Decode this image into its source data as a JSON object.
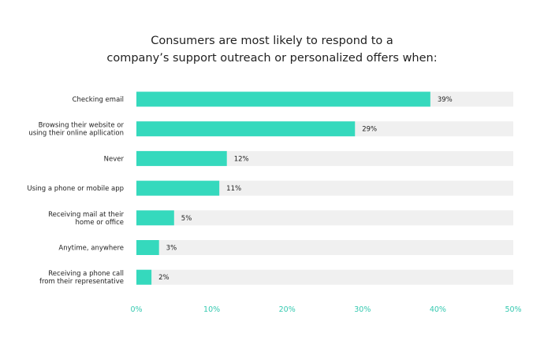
{
  "chart_data": {
    "type": "bar",
    "orientation": "horizontal",
    "title_lines": [
      "Consumers are most likely to respond to a",
      "company’s support outreach or personalized offers when:"
    ],
    "categories": [
      [
        "Checking email"
      ],
      [
        "Browsing their website or",
        "using their online apllication"
      ],
      [
        "Never"
      ],
      [
        "Using a phone or mobile app"
      ],
      [
        "Receiving mail at their",
        "home or office"
      ],
      [
        "Anytime, anywhere"
      ],
      [
        "Receiving a phone call",
        "from their representative"
      ]
    ],
    "values": [
      39,
      29,
      12,
      11,
      5,
      3,
      2
    ],
    "value_labels": [
      "39%",
      "29%",
      "12%",
      "11%",
      "5%",
      "3%",
      "2%"
    ],
    "xlim": [
      0,
      50
    ],
    "xticks": [
      0,
      10,
      20,
      30,
      40,
      50
    ],
    "xtick_labels": [
      "0%",
      "10%",
      "20%",
      "30%",
      "40%",
      "50%"
    ],
    "xlabel": "",
    "ylabel": "",
    "grid": false,
    "legend": "none",
    "colors": {
      "bar": "#35d9bd",
      "track": "#f0f0f0",
      "tick_text": "#35c9b0",
      "text": "#222222"
    }
  }
}
